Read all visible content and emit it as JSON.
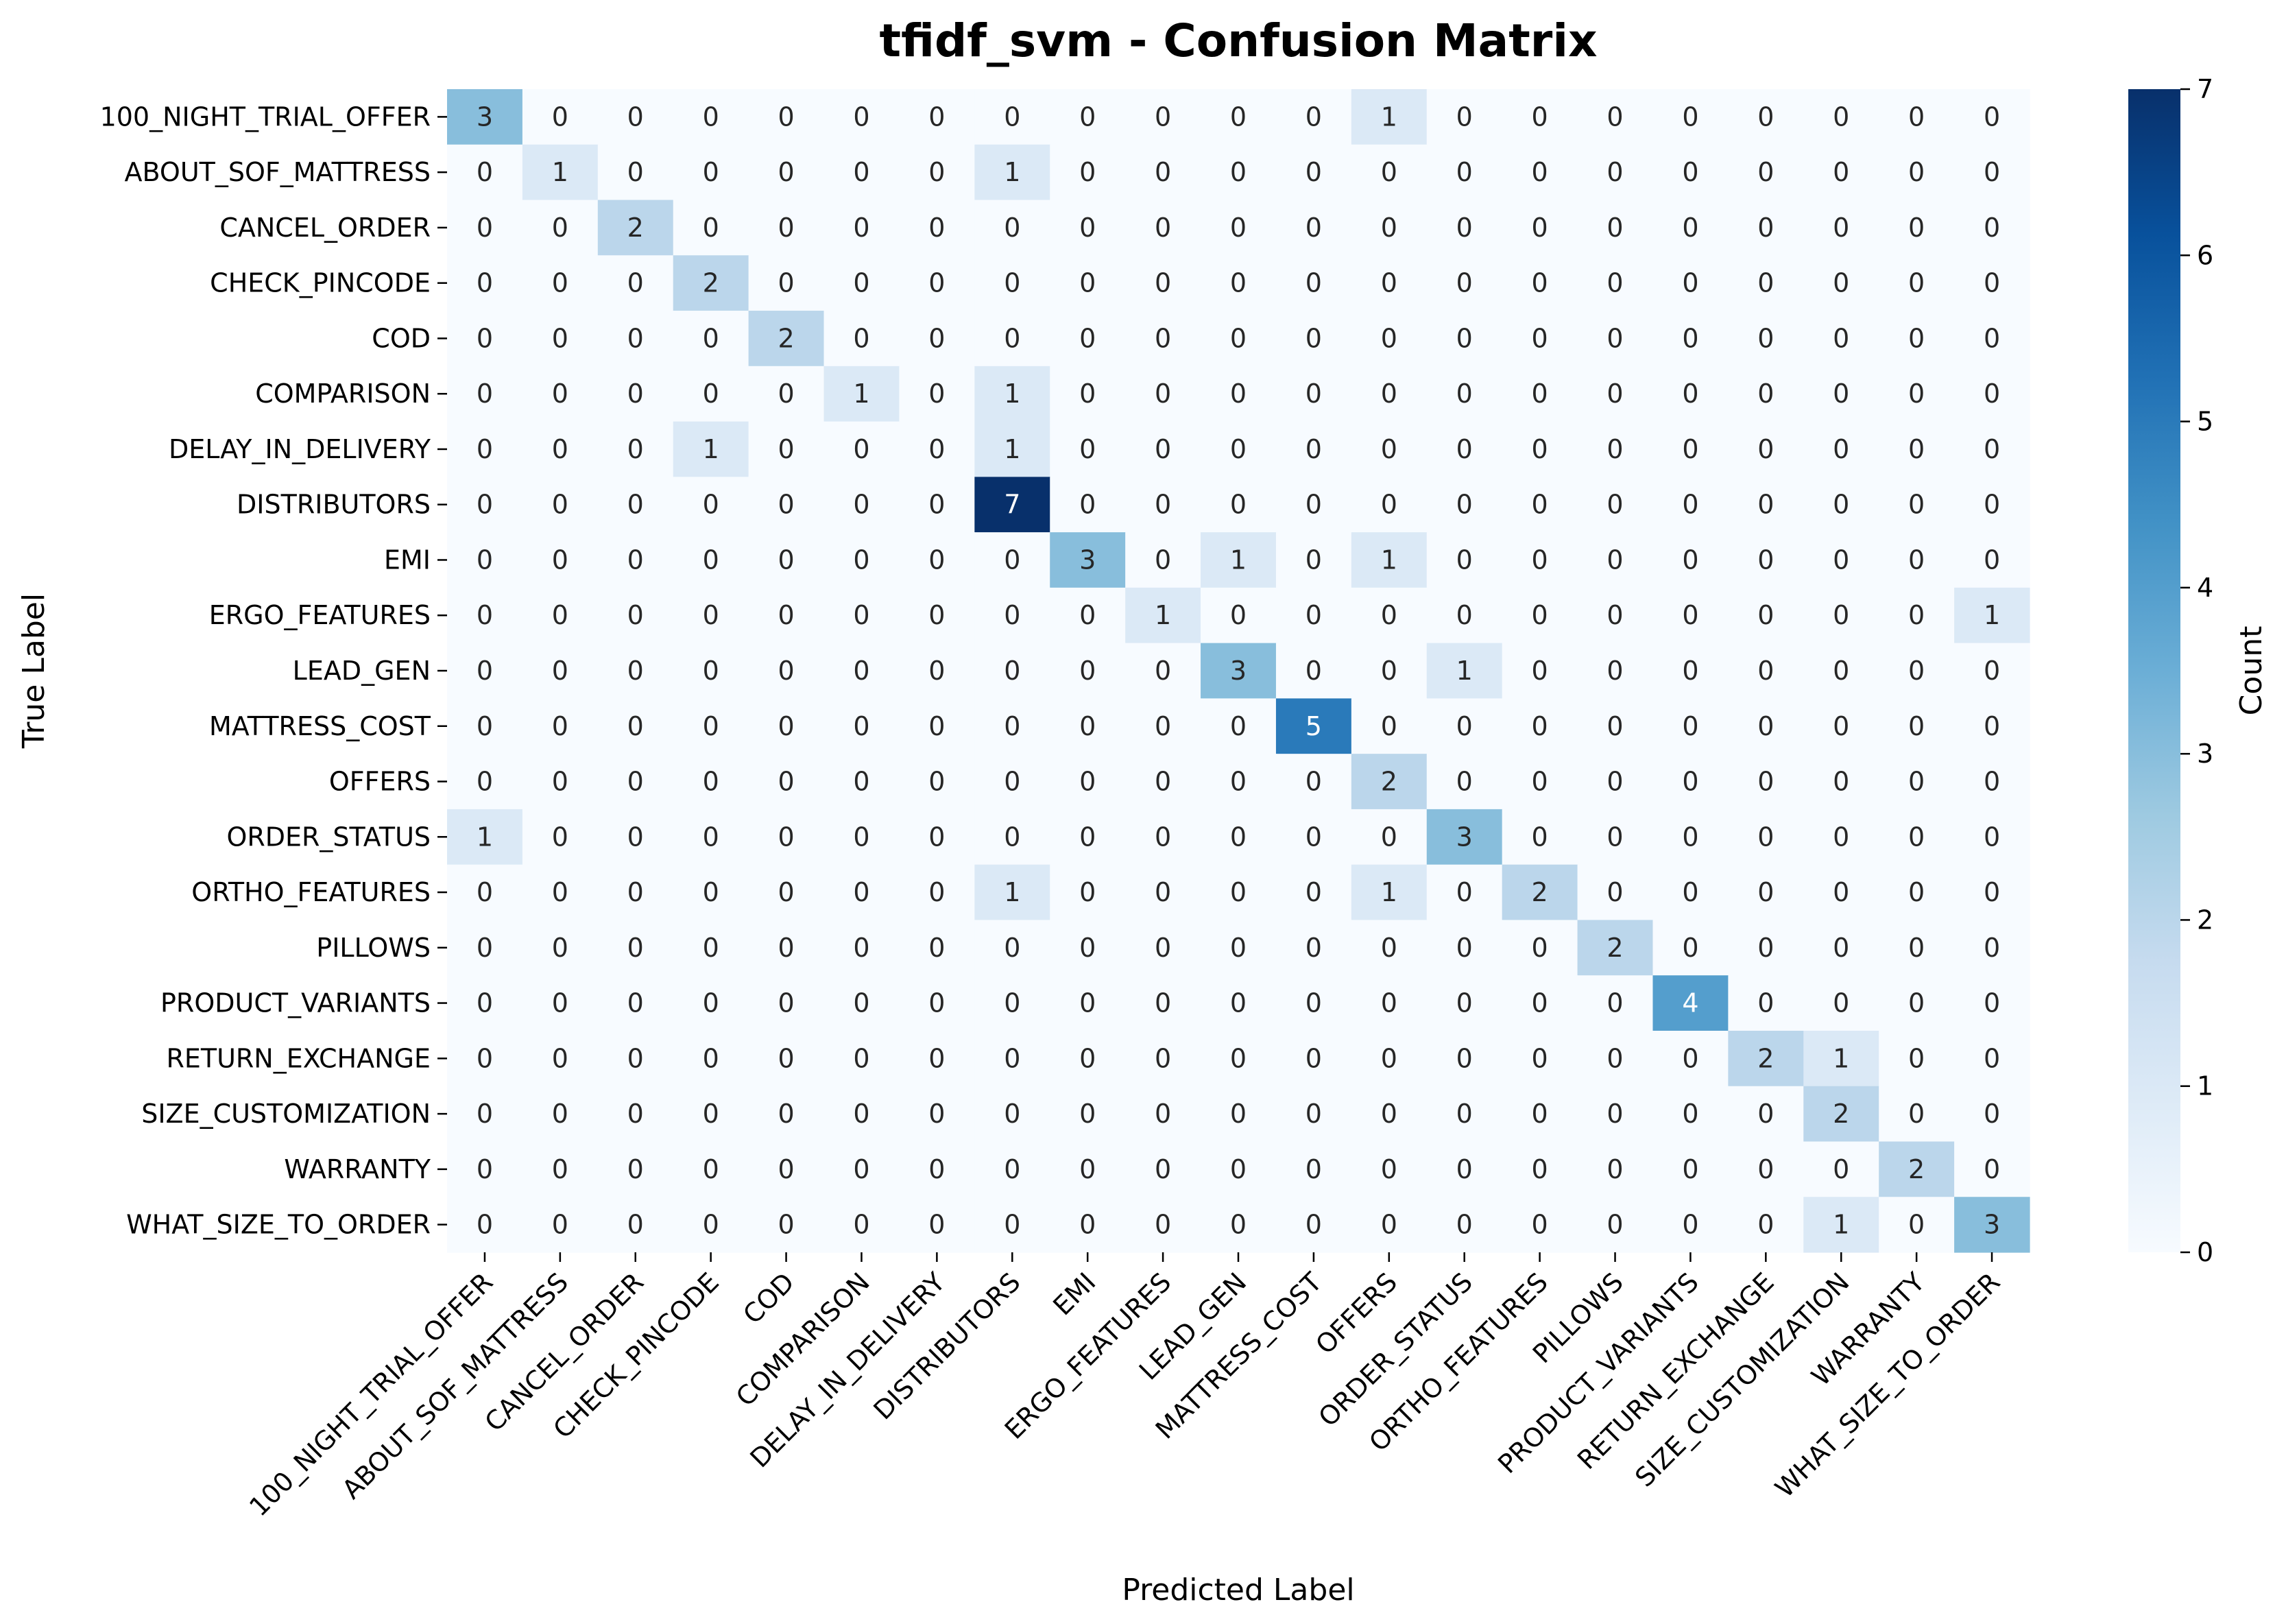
{
  "chart_data": {
    "type": "heatmap",
    "title": "tfidf_svm - Confusion Matrix",
    "xlabel": "Predicted Label",
    "ylabel": "True Label",
    "colorbar_label": "Count",
    "colormap": "Blues",
    "vmin": 0,
    "vmax": 7,
    "colorbar_ticks": [
      0,
      1,
      2,
      3,
      4,
      5,
      6,
      7
    ],
    "rows": [
      "100_NIGHT_TRIAL_OFFER",
      "ABOUT_SOF_MATTRESS",
      "CANCEL_ORDER",
      "CHECK_PINCODE",
      "COD",
      "COMPARISON",
      "DELAY_IN_DELIVERY",
      "DISTRIBUTORS",
      "EMI",
      "ERGO_FEATURES",
      "LEAD_GEN",
      "MATTRESS_COST",
      "OFFERS",
      "ORDER_STATUS",
      "ORTHO_FEATURES",
      "PILLOWS",
      "PRODUCT_VARIANTS",
      "RETURN_EXCHANGE",
      "SIZE_CUSTOMIZATION",
      "WARRANTY",
      "WHAT_SIZE_TO_ORDER"
    ],
    "columns": [
      "100_NIGHT_TRIAL_OFFER",
      "ABOUT_SOF_MATTRESS",
      "CANCEL_ORDER",
      "CHECK_PINCODE",
      "COD",
      "COMPARISON",
      "DELAY_IN_DELIVERY",
      "DISTRIBUTORS",
      "EMI",
      "ERGO_FEATURES",
      "LEAD_GEN",
      "MATTRESS_COST",
      "OFFERS",
      "ORDER_STATUS",
      "ORTHO_FEATURES",
      "PILLOWS",
      "PRODUCT_VARIANTS",
      "RETURN_EXCHANGE",
      "SIZE_CUSTOMIZATION",
      "WARRANTY",
      "WHAT_SIZE_TO_ORDER"
    ],
    "matrix": [
      [
        3,
        0,
        0,
        0,
        0,
        0,
        0,
        0,
        0,
        0,
        0,
        0,
        1,
        0,
        0,
        0,
        0,
        0,
        0,
        0,
        0
      ],
      [
        0,
        1,
        0,
        0,
        0,
        0,
        0,
        1,
        0,
        0,
        0,
        0,
        0,
        0,
        0,
        0,
        0,
        0,
        0,
        0,
        0
      ],
      [
        0,
        0,
        2,
        0,
        0,
        0,
        0,
        0,
        0,
        0,
        0,
        0,
        0,
        0,
        0,
        0,
        0,
        0,
        0,
        0,
        0
      ],
      [
        0,
        0,
        0,
        2,
        0,
        0,
        0,
        0,
        0,
        0,
        0,
        0,
        0,
        0,
        0,
        0,
        0,
        0,
        0,
        0,
        0
      ],
      [
        0,
        0,
        0,
        0,
        2,
        0,
        0,
        0,
        0,
        0,
        0,
        0,
        0,
        0,
        0,
        0,
        0,
        0,
        0,
        0,
        0
      ],
      [
        0,
        0,
        0,
        0,
        0,
        1,
        0,
        1,
        0,
        0,
        0,
        0,
        0,
        0,
        0,
        0,
        0,
        0,
        0,
        0,
        0
      ],
      [
        0,
        0,
        0,
        1,
        0,
        0,
        0,
        1,
        0,
        0,
        0,
        0,
        0,
        0,
        0,
        0,
        0,
        0,
        0,
        0,
        0
      ],
      [
        0,
        0,
        0,
        0,
        0,
        0,
        0,
        7,
        0,
        0,
        0,
        0,
        0,
        0,
        0,
        0,
        0,
        0,
        0,
        0,
        0
      ],
      [
        0,
        0,
        0,
        0,
        0,
        0,
        0,
        0,
        3,
        0,
        1,
        0,
        1,
        0,
        0,
        0,
        0,
        0,
        0,
        0,
        0
      ],
      [
        0,
        0,
        0,
        0,
        0,
        0,
        0,
        0,
        0,
        1,
        0,
        0,
        0,
        0,
        0,
        0,
        0,
        0,
        0,
        0,
        1
      ],
      [
        0,
        0,
        0,
        0,
        0,
        0,
        0,
        0,
        0,
        0,
        3,
        0,
        0,
        1,
        0,
        0,
        0,
        0,
        0,
        0,
        0
      ],
      [
        0,
        0,
        0,
        0,
        0,
        0,
        0,
        0,
        0,
        0,
        0,
        5,
        0,
        0,
        0,
        0,
        0,
        0,
        0,
        0,
        0
      ],
      [
        0,
        0,
        0,
        0,
        0,
        0,
        0,
        0,
        0,
        0,
        0,
        0,
        2,
        0,
        0,
        0,
        0,
        0,
        0,
        0,
        0
      ],
      [
        1,
        0,
        0,
        0,
        0,
        0,
        0,
        0,
        0,
        0,
        0,
        0,
        0,
        3,
        0,
        0,
        0,
        0,
        0,
        0,
        0
      ],
      [
        0,
        0,
        0,
        0,
        0,
        0,
        0,
        1,
        0,
        0,
        0,
        0,
        1,
        0,
        2,
        0,
        0,
        0,
        0,
        0,
        0
      ],
      [
        0,
        0,
        0,
        0,
        0,
        0,
        0,
        0,
        0,
        0,
        0,
        0,
        0,
        0,
        0,
        2,
        0,
        0,
        0,
        0,
        0
      ],
      [
        0,
        0,
        0,
        0,
        0,
        0,
        0,
        0,
        0,
        0,
        0,
        0,
        0,
        0,
        0,
        0,
        4,
        0,
        0,
        0,
        0
      ],
      [
        0,
        0,
        0,
        0,
        0,
        0,
        0,
        0,
        0,
        0,
        0,
        0,
        0,
        0,
        0,
        0,
        0,
        2,
        1,
        0,
        0
      ],
      [
        0,
        0,
        0,
        0,
        0,
        0,
        0,
        0,
        0,
        0,
        0,
        0,
        0,
        0,
        0,
        0,
        0,
        0,
        2,
        0,
        0
      ],
      [
        0,
        0,
        0,
        0,
        0,
        0,
        0,
        0,
        0,
        0,
        0,
        0,
        0,
        0,
        0,
        0,
        0,
        0,
        0,
        2,
        0
      ],
      [
        0,
        0,
        0,
        0,
        0,
        0,
        0,
        0,
        0,
        0,
        0,
        0,
        0,
        0,
        0,
        0,
        0,
        0,
        1,
        0,
        3
      ]
    ]
  }
}
